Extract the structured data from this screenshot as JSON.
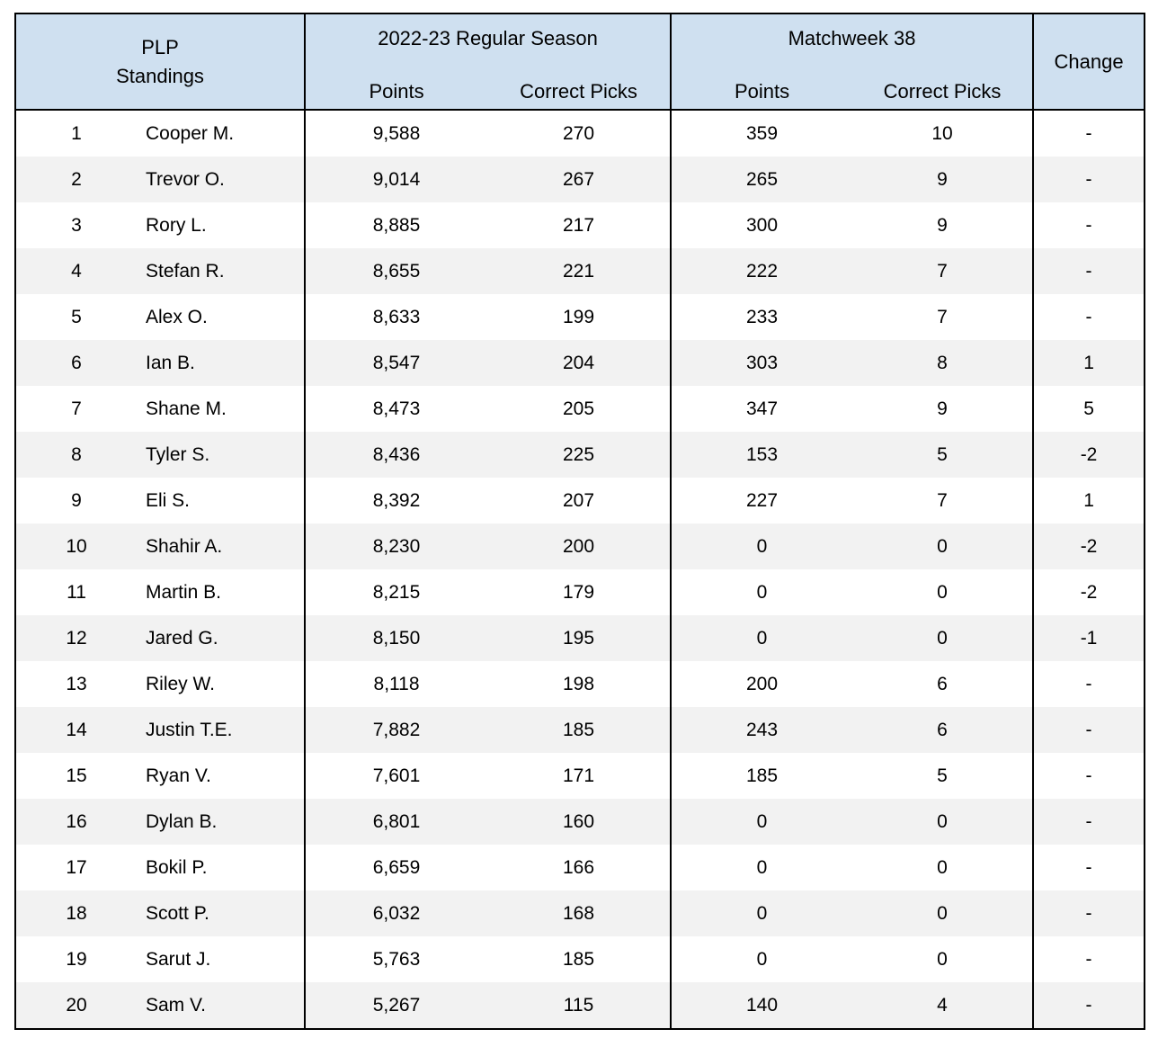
{
  "table": {
    "header": {
      "standings_title_line1": "PLP",
      "standings_title_line2": "Standings",
      "season_group": "2022-23 Regular Season",
      "matchweek_group": "Matchweek 38",
      "season_points_label": "Points",
      "season_correct_picks_label": "Correct Picks",
      "matchweek_points_label": "Points",
      "matchweek_correct_picks_label": "Correct Picks",
      "change_label": "Change"
    },
    "rows": [
      {
        "rank": "1",
        "name": "Cooper M.",
        "season_points": "9,588",
        "season_picks": "270",
        "mw_points": "359",
        "mw_picks": "10",
        "change": "-"
      },
      {
        "rank": "2",
        "name": "Trevor O.",
        "season_points": "9,014",
        "season_picks": "267",
        "mw_points": "265",
        "mw_picks": "9",
        "change": "-"
      },
      {
        "rank": "3",
        "name": "Rory L.",
        "season_points": "8,885",
        "season_picks": "217",
        "mw_points": "300",
        "mw_picks": "9",
        "change": "-"
      },
      {
        "rank": "4",
        "name": "Stefan R.",
        "season_points": "8,655",
        "season_picks": "221",
        "mw_points": "222",
        "mw_picks": "7",
        "change": "-"
      },
      {
        "rank": "5",
        "name": "Alex O.",
        "season_points": "8,633",
        "season_picks": "199",
        "mw_points": "233",
        "mw_picks": "7",
        "change": "-"
      },
      {
        "rank": "6",
        "name": "Ian B.",
        "season_points": "8,547",
        "season_picks": "204",
        "mw_points": "303",
        "mw_picks": "8",
        "change": "1"
      },
      {
        "rank": "7",
        "name": "Shane M.",
        "season_points": "8,473",
        "season_picks": "205",
        "mw_points": "347",
        "mw_picks": "9",
        "change": "5"
      },
      {
        "rank": "8",
        "name": "Tyler S.",
        "season_points": "8,436",
        "season_picks": "225",
        "mw_points": "153",
        "mw_picks": "5",
        "change": "-2"
      },
      {
        "rank": "9",
        "name": "Eli S.",
        "season_points": "8,392",
        "season_picks": "207",
        "mw_points": "227",
        "mw_picks": "7",
        "change": "1"
      },
      {
        "rank": "10",
        "name": "Shahir A.",
        "season_points": "8,230",
        "season_picks": "200",
        "mw_points": "0",
        "mw_picks": "0",
        "change": "-2"
      },
      {
        "rank": "11",
        "name": "Martin B.",
        "season_points": "8,215",
        "season_picks": "179",
        "mw_points": "0",
        "mw_picks": "0",
        "change": "-2"
      },
      {
        "rank": "12",
        "name": "Jared G.",
        "season_points": "8,150",
        "season_picks": "195",
        "mw_points": "0",
        "mw_picks": "0",
        "change": "-1"
      },
      {
        "rank": "13",
        "name": "Riley W.",
        "season_points": "8,118",
        "season_picks": "198",
        "mw_points": "200",
        "mw_picks": "6",
        "change": "-"
      },
      {
        "rank": "14",
        "name": "Justin T.E.",
        "season_points": "7,882",
        "season_picks": "185",
        "mw_points": "243",
        "mw_picks": "6",
        "change": "-"
      },
      {
        "rank": "15",
        "name": "Ryan V.",
        "season_points": "7,601",
        "season_picks": "171",
        "mw_points": "185",
        "mw_picks": "5",
        "change": "-"
      },
      {
        "rank": "16",
        "name": "Dylan B.",
        "season_points": "6,801",
        "season_picks": "160",
        "mw_points": "0",
        "mw_picks": "0",
        "change": "-"
      },
      {
        "rank": "17",
        "name": "Bokil P.",
        "season_points": "6,659",
        "season_picks": "166",
        "mw_points": "0",
        "mw_picks": "0",
        "change": "-"
      },
      {
        "rank": "18",
        "name": "Scott P.",
        "season_points": "6,032",
        "season_picks": "168",
        "mw_points": "0",
        "mw_picks": "0",
        "change": "-"
      },
      {
        "rank": "19",
        "name": "Sarut J.",
        "season_points": "5,763",
        "season_picks": "185",
        "mw_points": "0",
        "mw_picks": "0",
        "change": "-"
      },
      {
        "rank": "20",
        "name": "Sam V.",
        "season_points": "5,267",
        "season_picks": "115",
        "mw_points": "140",
        "mw_picks": "4",
        "change": "-"
      }
    ]
  },
  "colors": {
    "header_bg": "#cfe0f0",
    "alt_row_bg": "#f2f2f2",
    "border": "#000000",
    "text": "#000000"
  }
}
